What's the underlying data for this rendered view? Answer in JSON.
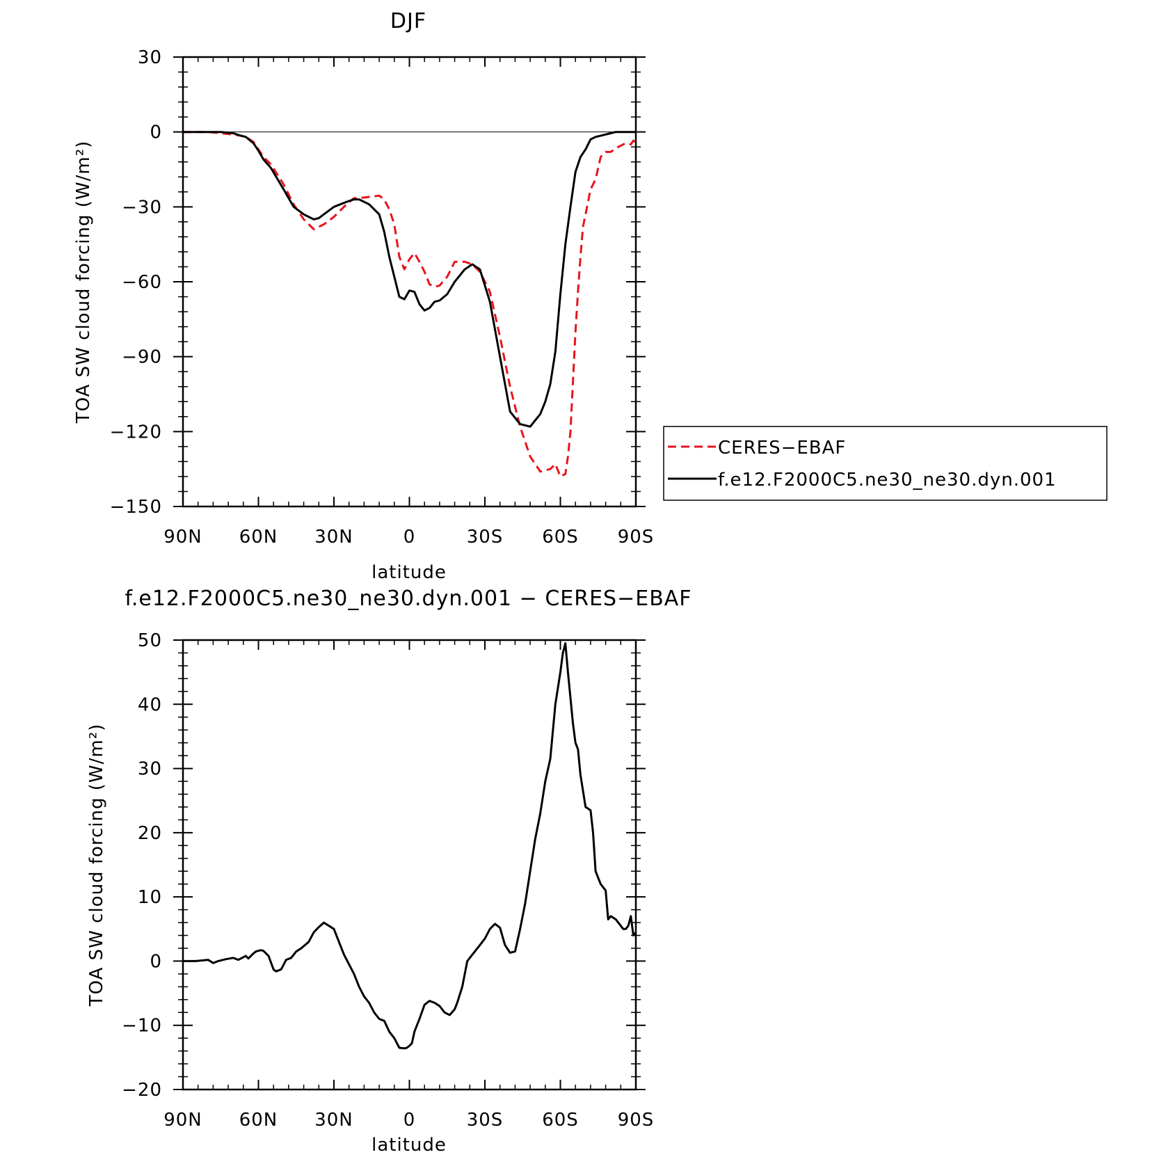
{
  "chart_data": [
    {
      "type": "line",
      "title": "DJF",
      "xlabel": "latitude",
      "ylabel": "TOA SW cloud forcing (W/m²)",
      "xlim": [
        90,
        -90
      ],
      "ylim": [
        -150,
        30
      ],
      "x_ticks": [
        90,
        60,
        30,
        0,
        -30,
        -60,
        -90
      ],
      "x_tick_labels": [
        "90N",
        "60N",
        "30N",
        "0",
        "30S",
        "60S",
        "90S"
      ],
      "y_ticks": [
        30,
        0,
        -30,
        -60,
        -90,
        -120,
        -150
      ],
      "y_tick_labels": [
        "30",
        "0",
        "−30",
        "−60",
        "−90",
        "−120",
        "−150"
      ],
      "legend": {
        "placement": "right",
        "entries": [
          "CERES−EBAF",
          "f.e12.F2000C5.ne30_ne30.dyn.001"
        ]
      },
      "series": [
        {
          "name": "CERES-EBAF",
          "color": "#e8141c",
          "style": "dashed",
          "x": [
            90,
            85,
            80,
            75,
            70,
            67,
            65,
            62,
            60,
            58,
            55,
            50,
            46,
            42,
            38,
            36,
            34,
            30,
            25,
            22,
            20,
            16,
            12,
            10,
            8,
            6,
            4,
            2,
            0,
            -2,
            -4,
            -6,
            -8,
            -10,
            -12,
            -15,
            -18,
            -22,
            -25,
            -28,
            -32,
            -36,
            -40,
            -44,
            -48,
            -52,
            -56,
            -58,
            -60,
            -62,
            -63,
            -64,
            -65,
            -66,
            -67,
            -68,
            -69,
            -70,
            -72,
            -74,
            -76,
            -78,
            -80,
            -82,
            -84,
            -86,
            -88,
            -89,
            -90
          ],
          "y": [
            0,
            0,
            0,
            -0.5,
            -1,
            -1.5,
            -2,
            -4,
            -7,
            -10,
            -13,
            -21,
            -29,
            -35,
            -39,
            -38,
            -37,
            -34,
            -29,
            -26.5,
            -26.5,
            -26,
            -25.5,
            -27,
            -31,
            -37,
            -50,
            -55,
            -51,
            -48.5,
            -52,
            -56,
            -61,
            -62,
            -61.5,
            -58,
            -52,
            -52,
            -53,
            -56,
            -64,
            -82,
            -102,
            -118,
            -130,
            -136,
            -135,
            -133,
            -138,
            -137,
            -130,
            -120,
            -100,
            -80,
            -64,
            -50,
            -38,
            -33,
            -23,
            -19,
            -10,
            -8,
            -8,
            -6.5,
            -5.5,
            -4.5,
            -5,
            -3.5,
            -4
          ]
        },
        {
          "name": "f.e12.F2000C5.ne30_ne30.dyn.001",
          "color": "#000000",
          "style": "solid",
          "x": [
            90,
            85,
            80,
            75,
            70,
            67,
            65,
            62,
            60,
            58,
            55,
            50,
            46,
            42,
            38,
            36,
            34,
            30,
            25,
            22,
            20,
            16,
            12,
            10,
            8,
            6,
            4,
            2,
            0,
            -2,
            -4,
            -6,
            -8,
            -10,
            -12,
            -15,
            -18,
            -22,
            -25,
            -28,
            -32,
            -36,
            -40,
            -44,
            -48,
            -52,
            -54,
            -56,
            -58,
            -60,
            -62,
            -64,
            -66,
            -68,
            -70,
            -72,
            -74,
            -76,
            -78,
            -80,
            -82,
            -84,
            -86,
            -88,
            -90
          ],
          "y": [
            0,
            0,
            0,
            0,
            -0.5,
            -1.5,
            -2,
            -4.5,
            -7.5,
            -11,
            -14.5,
            -23,
            -30,
            -33,
            -35,
            -34.5,
            -33,
            -30,
            -28,
            -27,
            -27,
            -29,
            -33,
            -40,
            -50,
            -58,
            -66,
            -67,
            -63.5,
            -64,
            -69,
            -71.5,
            -70.5,
            -68,
            -67.5,
            -65,
            -60,
            -55,
            -53,
            -55,
            -68,
            -90,
            -112,
            -117,
            -118,
            -113,
            -108,
            -101,
            -88,
            -65,
            -45,
            -30,
            -16,
            -10,
            -7,
            -3,
            -2,
            -1.5,
            -1,
            -0.5,
            0,
            0,
            0,
            0,
            0
          ]
        }
      ]
    },
    {
      "type": "line",
      "title": "f.e12.F2000C5.ne30_ne30.dyn.001 − CERES−EBAF",
      "xlabel": "latitude",
      "ylabel": "TOA SW cloud forcing (W/m²)",
      "xlim": [
        90,
        -90
      ],
      "ylim": [
        -20,
        50
      ],
      "x_ticks": [
        90,
        60,
        30,
        0,
        -30,
        -60,
        -90
      ],
      "x_tick_labels": [
        "90N",
        "60N",
        "30N",
        "0",
        "30S",
        "60S",
        "90S"
      ],
      "y_ticks": [
        50,
        40,
        30,
        20,
        10,
        0,
        -10,
        -20
      ],
      "y_tick_labels": [
        "50",
        "40",
        "30",
        "20",
        "10",
        "0",
        "−10",
        "−20"
      ],
      "series": [
        {
          "color": "#000000",
          "style": "solid",
          "x": [
            90,
            85,
            80,
            78,
            76,
            73,
            70,
            68,
            65,
            64,
            62,
            61,
            59,
            58,
            56,
            54,
            53,
            51,
            49,
            47,
            45,
            43,
            40,
            38,
            36,
            34,
            32,
            30,
            28,
            26,
            24,
            22,
            20,
            18,
            16,
            14,
            12,
            10,
            8,
            6,
            4,
            2,
            1,
            0,
            -1,
            -2,
            -4,
            -6,
            -8,
            -10,
            -12,
            -14,
            -16,
            -18,
            -19,
            -21,
            -23,
            -25,
            -27,
            -28,
            -30,
            -32,
            -34,
            -35,
            -36,
            -38,
            -40,
            -42,
            -44,
            -46,
            -48,
            -50,
            -52,
            -54,
            -56,
            -58,
            -60,
            -61,
            -62,
            -63,
            -64,
            -65,
            -66,
            -67,
            -68,
            -70,
            -72,
            -73,
            -74,
            -76,
            -78,
            -79,
            -80,
            -82,
            -84,
            -85,
            -86,
            -87,
            -88,
            -89,
            -90
          ],
          "y": [
            0,
            0,
            0.2,
            -0.3,
            0,
            0.3,
            0.5,
            0.2,
            0.8,
            0.4,
            1.2,
            1.5,
            1.7,
            1.6,
            0.8,
            -1.3,
            -1.6,
            -1.3,
            0.2,
            0.5,
            1.5,
            2,
            3,
            4.5,
            5.3,
            6,
            5.5,
            5,
            3,
            1,
            -0.5,
            -2,
            -4,
            -5.5,
            -6.5,
            -8,
            -9,
            -9.3,
            -11,
            -12,
            -13.5,
            -13.6,
            -13.5,
            -13.2,
            -12.8,
            -11,
            -9,
            -6.8,
            -6.2,
            -6.5,
            -7,
            -8,
            -8.4,
            -7.5,
            -6.5,
            -4,
            0,
            1,
            2,
            2.5,
            3.5,
            5,
            5.8,
            5.5,
            5.2,
            2.5,
            1.3,
            1.5,
            5,
            9,
            14,
            19,
            23,
            28,
            31.5,
            40,
            45,
            48,
            49.5,
            45,
            41,
            37,
            34,
            33,
            29,
            24,
            23.5,
            20,
            14,
            12,
            11,
            6.5,
            7,
            6.5,
            5.5,
            5,
            5,
            5.5,
            7,
            4,
            4.5
          ]
        }
      ]
    }
  ]
}
